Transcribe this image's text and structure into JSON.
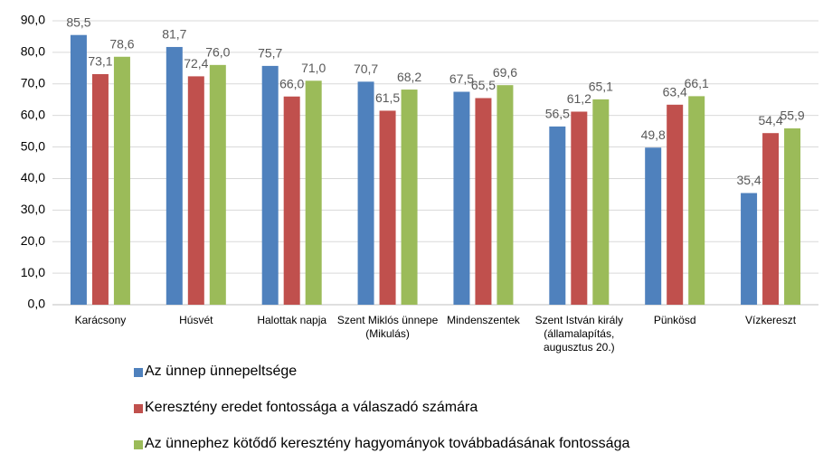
{
  "chart_data": {
    "type": "bar",
    "categories": [
      "Karácsony",
      "Húsvét",
      "Halottak napja",
      "Szent Miklós ünnepe (Mikulás)",
      "Mindenszentek",
      "Szent István király (államalapítás, augusztus 20.)",
      "Pünkösd",
      "Vízkereszt"
    ],
    "series": [
      {
        "name": "Az ünnep ünnepeltsége",
        "color": "#4f81bd",
        "values": [
          85.5,
          81.7,
          75.7,
          70.7,
          67.5,
          56.5,
          49.8,
          35.4
        ],
        "value_labels": [
          "85,5",
          "81,7",
          "75,7",
          "70,7",
          "67,5",
          "56,5",
          "49,8",
          "35,4"
        ]
      },
      {
        "name": "Keresztény eredet fontossága a válaszadó számára",
        "color": "#c0504d",
        "values": [
          73.1,
          72.4,
          66.0,
          61.5,
          65.5,
          61.2,
          63.4,
          54.4
        ],
        "value_labels": [
          "73,1",
          "72,4",
          "66,0",
          "61,5",
          "65,5",
          "61,2",
          "63,4",
          "54,4"
        ]
      },
      {
        "name": "Az ünnephez kötődő keresztény hagyományok továbbadásának fontossága",
        "color": "#9bbb59",
        "values": [
          78.6,
          76.0,
          71.0,
          68.2,
          69.6,
          65.1,
          66.1,
          55.9
        ],
        "value_labels": [
          "78,6",
          "76,0",
          "71,0",
          "68,2",
          "69,6",
          "65,1",
          "66,1",
          "55,9"
        ]
      }
    ],
    "ylim": [
      0,
      90
    ],
    "yticks": [
      {
        "value": 0,
        "label": "0,0"
      },
      {
        "value": 10,
        "label": "10,0"
      },
      {
        "value": 20,
        "label": "20,0"
      },
      {
        "value": 30,
        "label": "30,0"
      },
      {
        "value": 40,
        "label": "40,0"
      },
      {
        "value": 50,
        "label": "50,0"
      },
      {
        "value": 60,
        "label": "60,0"
      },
      {
        "value": 70,
        "label": "70,0"
      },
      {
        "value": 80,
        "label": "80,0"
      },
      {
        "value": 90,
        "label": "90,0"
      }
    ],
    "grid": true,
    "legend": "bottom"
  }
}
